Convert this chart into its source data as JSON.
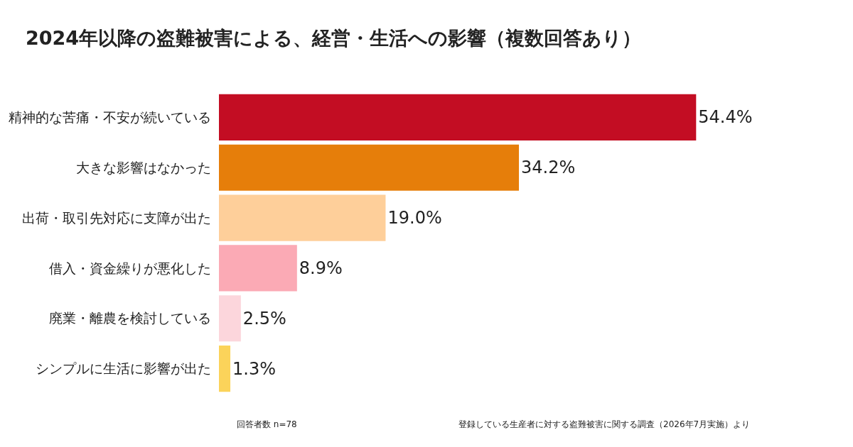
{
  "chart_data": {
    "type": "bar",
    "orientation": "horizontal",
    "title": "2024年以降の盗難被害による、経営・生活への影響（複数回答あり）",
    "categories": [
      "精神的な苦痛・不安が続いている",
      "大きな影響はなかった",
      "出荷・取引先対応に支障が出た",
      "借入・資金繰りが悪化した",
      "廃業・離農を検討している",
      "シンプルに生活に影響が出た"
    ],
    "values": [
      54.4,
      34.2,
      19.0,
      8.9,
      2.5,
      1.3
    ],
    "value_labels": [
      "54.4%",
      "34.2%",
      "19.0%",
      "8.9%",
      "2.5%",
      "1.3%"
    ],
    "colors": [
      "#c30d23",
      "#e67e0a",
      "#fecf9a",
      "#fbaab5",
      "#fcd6dc",
      "#fbd35a"
    ],
    "annotations": [
      "回答者数 n=78",
      "登録している生産者に対する盗難被害に関する調査（2026年7月実施）より"
    ]
  }
}
